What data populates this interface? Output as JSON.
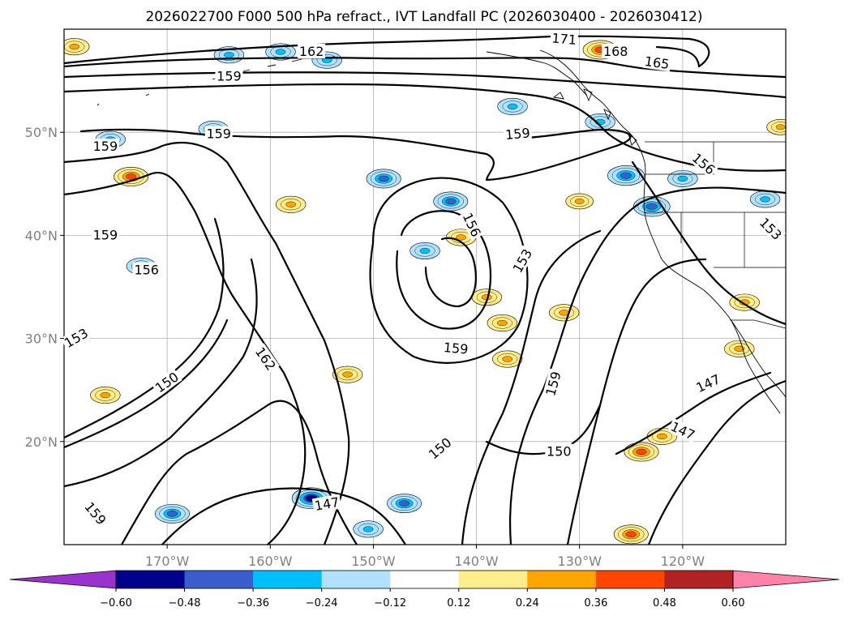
{
  "chart_data": {
    "type": "contour-map",
    "title": "2026022700 F000 500 hPa refract., IVT Landfall PC (2026030400 - 2026030412)",
    "xlabel": "",
    "ylabel": "",
    "lon_range": [
      -180,
      -110
    ],
    "lat_range": [
      10,
      60
    ],
    "grid": true,
    "x_ticks": [
      -170,
      -160,
      -150,
      -140,
      -130,
      -120
    ],
    "x_tick_labels": [
      "170°W",
      "160°W",
      "150°W",
      "140°W",
      "130°W",
      "120°W"
    ],
    "y_ticks": [
      20,
      30,
      40,
      50
    ],
    "y_tick_labels": [
      "20°N",
      "30°N",
      "40°N",
      "50°N"
    ],
    "contour_levels": [
      147,
      150,
      153,
      156,
      159,
      162,
      165,
      168,
      171
    ],
    "contour_labels": [
      {
        "text": "171",
        "lon": -131.5,
        "lat": 59.0,
        "rotation": 5
      },
      {
        "text": "168",
        "lon": -126.5,
        "lat": 57.8,
        "rotation": 0
      },
      {
        "text": "165",
        "lon": -122.5,
        "lat": 56.7,
        "rotation": 8
      },
      {
        "text": "162",
        "lon": -156.0,
        "lat": 57.8,
        "rotation": 0
      },
      {
        "text": "159",
        "lon": -164.0,
        "lat": 55.4,
        "rotation": 0
      },
      {
        "text": "159",
        "lon": -165.0,
        "lat": 49.8,
        "rotation": 0
      },
      {
        "text": "159",
        "lon": -136.0,
        "lat": 49.8,
        "rotation": -5
      },
      {
        "text": "159",
        "lon": -176.0,
        "lat": 48.6,
        "rotation": 0
      },
      {
        "text": "156",
        "lon": -118.0,
        "lat": 46.9,
        "rotation": 40
      },
      {
        "text": "153",
        "lon": -111.5,
        "lat": 40.6,
        "rotation": 45
      },
      {
        "text": "159",
        "lon": -176.0,
        "lat": 40.0,
        "rotation": 0
      },
      {
        "text": "156",
        "lon": -172.0,
        "lat": 36.6,
        "rotation": 0
      },
      {
        "text": "156",
        "lon": -140.5,
        "lat": 41.0,
        "rotation": 65
      },
      {
        "text": "153",
        "lon": -135.5,
        "lat": 37.5,
        "rotation": -60
      },
      {
        "text": "153",
        "lon": -178.8,
        "lat": 30.0,
        "rotation": -30
      },
      {
        "text": "162",
        "lon": -160.5,
        "lat": 28.0,
        "rotation": 55
      },
      {
        "text": "159",
        "lon": -142.0,
        "lat": 29.0,
        "rotation": 5
      },
      {
        "text": "150",
        "lon": -170.0,
        "lat": 25.7,
        "rotation": -35
      },
      {
        "text": "159",
        "lon": -132.5,
        "lat": 25.6,
        "rotation": -75
      },
      {
        "text": "147",
        "lon": -117.5,
        "lat": 25.6,
        "rotation": -25
      },
      {
        "text": "147",
        "lon": -120.0,
        "lat": 21.0,
        "rotation": 25
      },
      {
        "text": "150",
        "lon": -143.5,
        "lat": 19.3,
        "rotation": -40
      },
      {
        "text": "150",
        "lon": -132.0,
        "lat": 19.0,
        "rotation": 0
      },
      {
        "text": "147",
        "lon": -154.5,
        "lat": 13.9,
        "rotation": -10
      },
      {
        "text": "159",
        "lon": -177.0,
        "lat": 13.0,
        "rotation": 50
      }
    ],
    "colorbar": {
      "levels": [
        -0.6,
        -0.48,
        -0.36,
        -0.24,
        -0.12,
        0.12,
        0.24,
        0.36,
        0.48,
        0.6
      ],
      "tick_labels": [
        "−0.60",
        "−0.48",
        "−0.36",
        "−0.24",
        "−0.12",
        "0.12",
        "0.24",
        "0.36",
        "0.48",
        "0.60"
      ],
      "colors": [
        "#9a32cd",
        "#00008b",
        "#3a5fcd",
        "#00bfff",
        "#b0e2ff",
        "#ffffff",
        "#ffec8b",
        "#ffa500",
        "#ff4500",
        "#b22222",
        "#ff82ab"
      ],
      "extend": "both"
    },
    "shaded_features": [
      {
        "lon": -164,
        "lat": 57.5,
        "value": -0.3
      },
      {
        "lon": -159,
        "lat": 57.8,
        "value": -0.3
      },
      {
        "lon": -154.5,
        "lat": 57.0,
        "value": -0.3
      },
      {
        "lon": -165.5,
        "lat": 50.3,
        "value": -0.3
      },
      {
        "lon": -175.5,
        "lat": 49.3,
        "value": -0.3
      },
      {
        "lon": -149,
        "lat": 45.5,
        "value": -0.4
      },
      {
        "lon": -142.5,
        "lat": 43.3,
        "value": -0.4
      },
      {
        "lon": -125.5,
        "lat": 45.8,
        "value": -0.45
      },
      {
        "lon": -123.0,
        "lat": 42.8,
        "value": -0.45
      },
      {
        "lon": -120.0,
        "lat": 45.5,
        "value": -0.3
      },
      {
        "lon": -112.0,
        "lat": 43.5,
        "value": -0.3
      },
      {
        "lon": -128.0,
        "lat": 51.0,
        "value": -0.3
      },
      {
        "lon": -136.5,
        "lat": 52.5,
        "value": -0.3
      },
      {
        "lon": -145.0,
        "lat": 38.5,
        "value": -0.3
      },
      {
        "lon": -172.5,
        "lat": 37.0,
        "value": -0.3
      },
      {
        "lon": -156.0,
        "lat": 14.5,
        "value": -0.5
      },
      {
        "lon": -147.0,
        "lat": 14.0,
        "value": -0.4
      },
      {
        "lon": -169.5,
        "lat": 13.0,
        "value": -0.4
      },
      {
        "lon": -150.5,
        "lat": 11.5,
        "value": -0.3
      },
      {
        "lon": -173.5,
        "lat": 45.7,
        "value": 0.4
      },
      {
        "lon": -179.0,
        "lat": 58.3,
        "value": 0.3
      },
      {
        "lon": -128.0,
        "lat": 58.0,
        "value": 0.4
      },
      {
        "lon": -141.5,
        "lat": 39.8,
        "value": 0.3
      },
      {
        "lon": -131.5,
        "lat": 32.5,
        "value": 0.3
      },
      {
        "lon": -114.5,
        "lat": 29.0,
        "value": 0.3
      },
      {
        "lon": -124.0,
        "lat": 19.0,
        "value": 0.4
      },
      {
        "lon": -122.0,
        "lat": 20.5,
        "value": 0.3
      },
      {
        "lon": -125.0,
        "lat": 11.0,
        "value": 0.4
      },
      {
        "lon": -114.0,
        "lat": 33.5,
        "value": 0.3
      },
      {
        "lon": -176.0,
        "lat": 24.5,
        "value": 0.3
      },
      {
        "lon": -139.0,
        "lat": 34.0,
        "value": 0.3
      },
      {
        "lon": -137.5,
        "lat": 31.5,
        "value": 0.3
      },
      {
        "lon": -137.0,
        "lat": 28.0,
        "value": 0.3
      },
      {
        "lon": -152.5,
        "lat": 26.5,
        "value": 0.3
      },
      {
        "lon": -158.0,
        "lat": 43.0,
        "value": 0.3
      },
      {
        "lon": -130.0,
        "lat": 43.3,
        "value": 0.25
      },
      {
        "lon": -110.5,
        "lat": 50.5,
        "value": 0.25
      }
    ]
  }
}
